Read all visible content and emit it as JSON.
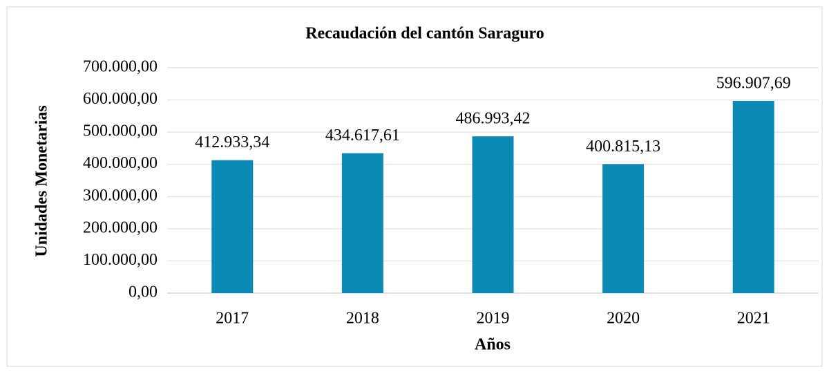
{
  "chart_data": {
    "type": "bar",
    "title": "Recaudación del cantón Saraguro",
    "x_label": "Años",
    "y_label": "Unidades Monetarias",
    "categories": [
      "2017",
      "2018",
      "2019",
      "2020",
      "2021"
    ],
    "values": [
      412933.34,
      434617.61,
      486993.42,
      400815.13,
      596907.69
    ],
    "value_labels": [
      "412.933,34",
      "434.617,61",
      "486.993,42",
      "400.815,13",
      "596.907,69"
    ],
    "color": "#0b8ab5",
    "ylim": [
      0,
      700000
    ],
    "yticks": [
      {
        "value": 0,
        "label": "0,00"
      },
      {
        "value": 100000,
        "label": "100.000,00"
      },
      {
        "value": 200000,
        "label": "200.000,00"
      },
      {
        "value": 300000,
        "label": "300.000,00"
      },
      {
        "value": 400000,
        "label": "400.000,00"
      },
      {
        "value": 500000,
        "label": "500.000,00"
      },
      {
        "value": 600000,
        "label": "600.000,00"
      },
      {
        "value": 700000,
        "label": "700.000,00"
      }
    ],
    "grid": true
  }
}
